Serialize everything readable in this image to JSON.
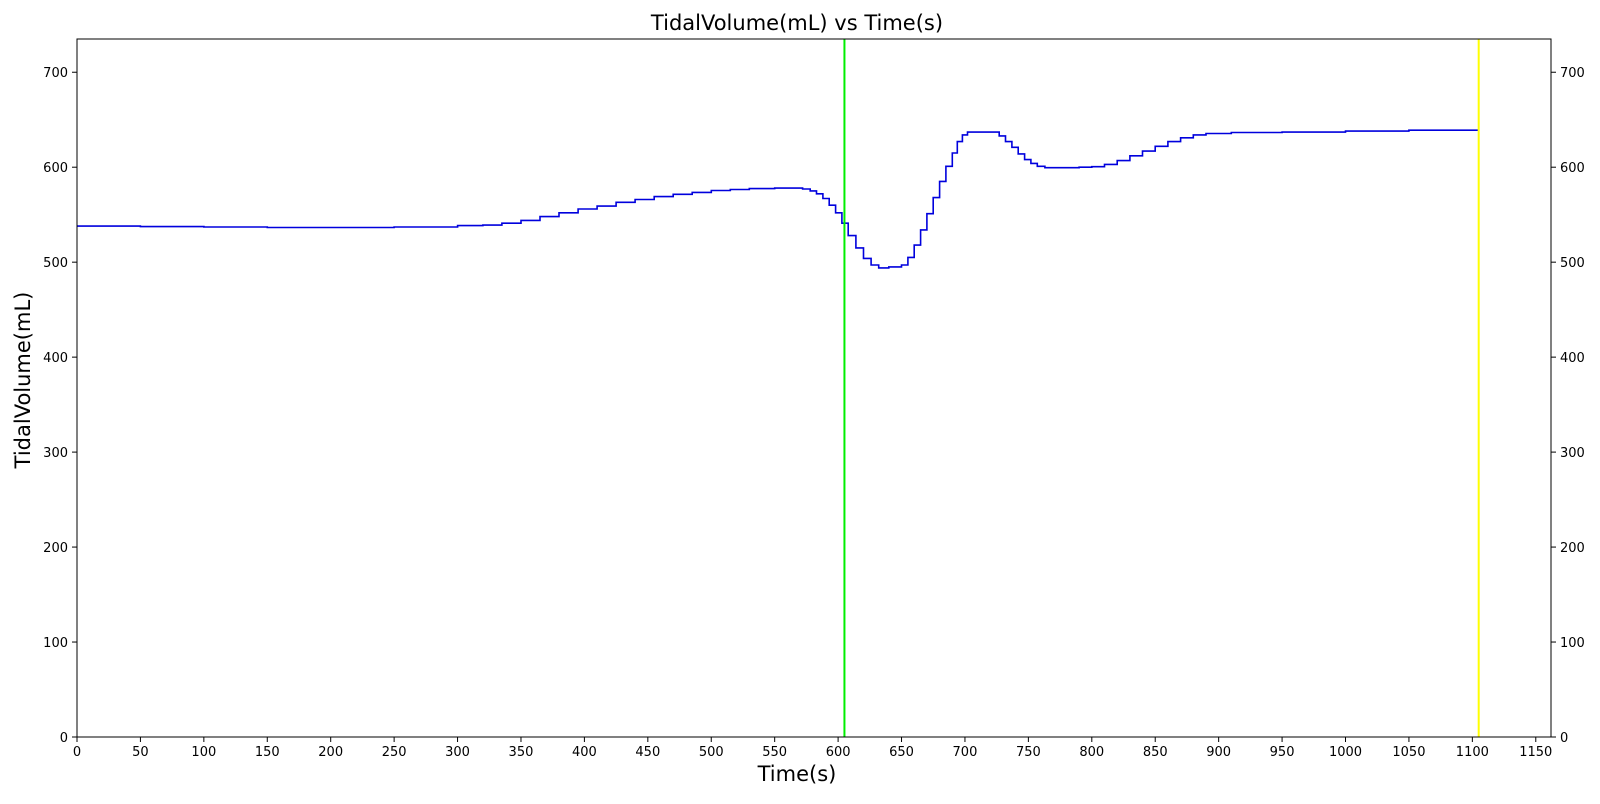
{
  "chart_data": {
    "type": "line",
    "title": "TidalVolume(mL) vs Time(s)",
    "xlabel": "Time(s)",
    "ylabel": "TidalVolume(mL)",
    "xlim": [
      0,
      1162
    ],
    "ylim": [
      0,
      735
    ],
    "x_ticks": [
      0,
      50,
      100,
      150,
      200,
      250,
      300,
      350,
      400,
      450,
      500,
      550,
      600,
      650,
      700,
      750,
      800,
      850,
      900,
      950,
      1000,
      1050,
      1100,
      1150
    ],
    "y_ticks": [
      0,
      100,
      200,
      300,
      400,
      500,
      600,
      700
    ],
    "y_ticks_right": true,
    "grid": false,
    "legend": "none",
    "series": [
      {
        "color": "#0000dd",
        "step": true,
        "points": [
          [
            0,
            538
          ],
          [
            50,
            537.5
          ],
          [
            100,
            537
          ],
          [
            150,
            536.5
          ],
          [
            185,
            536.5
          ],
          [
            250,
            537
          ],
          [
            300,
            538.5
          ],
          [
            320,
            539
          ],
          [
            335,
            541
          ],
          [
            350,
            544
          ],
          [
            365,
            548
          ],
          [
            380,
            552
          ],
          [
            395,
            556
          ],
          [
            410,
            559
          ],
          [
            425,
            563
          ],
          [
            440,
            566
          ],
          [
            455,
            569
          ],
          [
            470,
            571.5
          ],
          [
            485,
            573.5
          ],
          [
            500,
            575.5
          ],
          [
            515,
            576.5
          ],
          [
            530,
            577.5
          ],
          [
            550,
            578
          ],
          [
            565,
            578
          ],
          [
            572,
            577
          ],
          [
            578,
            575
          ],
          [
            583,
            572
          ],
          [
            588,
            567
          ],
          [
            593,
            560
          ],
          [
            598,
            552
          ],
          [
            603,
            541
          ],
          [
            608,
            528
          ],
          [
            614,
            515
          ],
          [
            620,
            504
          ],
          [
            626,
            497
          ],
          [
            632,
            494
          ],
          [
            640,
            495
          ],
          [
            650,
            497
          ],
          [
            655,
            505
          ],
          [
            660,
            518
          ],
          [
            665,
            534
          ],
          [
            670,
            551
          ],
          [
            675,
            568
          ],
          [
            680,
            585
          ],
          [
            685,
            601
          ],
          [
            690,
            615
          ],
          [
            694,
            627
          ],
          [
            698,
            634
          ],
          [
            702,
            637
          ],
          [
            712,
            637
          ],
          [
            722,
            637
          ],
          [
            727,
            633
          ],
          [
            732,
            627
          ],
          [
            737,
            621
          ],
          [
            742,
            614
          ],
          [
            747,
            608
          ],
          [
            752,
            604
          ],
          [
            757,
            601
          ],
          [
            763,
            599.5
          ],
          [
            775,
            599.5
          ],
          [
            790,
            600
          ],
          [
            800,
            600.5
          ],
          [
            810,
            603
          ],
          [
            820,
            607
          ],
          [
            830,
            612
          ],
          [
            840,
            617
          ],
          [
            850,
            622
          ],
          [
            860,
            627
          ],
          [
            870,
            631
          ],
          [
            880,
            634
          ],
          [
            890,
            635.5
          ],
          [
            910,
            636.5
          ],
          [
            950,
            637
          ],
          [
            1000,
            638
          ],
          [
            1050,
            639
          ],
          [
            1105,
            640
          ]
        ]
      }
    ],
    "vlines": [
      {
        "x": 605,
        "color": "#00ee00"
      },
      {
        "x": 1105,
        "color": "#ffff00"
      }
    ]
  }
}
